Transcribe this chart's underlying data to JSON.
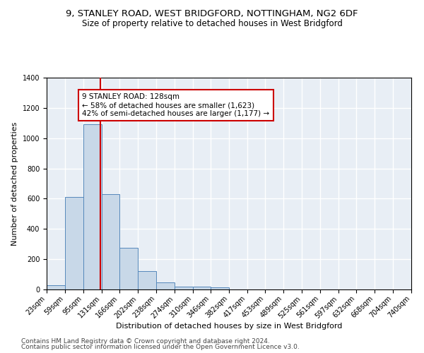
{
  "title1": "9, STANLEY ROAD, WEST BRIDGFORD, NOTTINGHAM, NG2 6DF",
  "title2": "Size of property relative to detached houses in West Bridgford",
  "xlabel": "Distribution of detached houses by size in West Bridgford",
  "ylabel": "Number of detached properties",
  "footnote1": "Contains HM Land Registry data © Crown copyright and database right 2024.",
  "footnote2": "Contains public sector information licensed under the Open Government Licence v3.0.",
  "bin_edges": [
    23,
    59,
    95,
    131,
    166,
    202,
    238,
    274,
    310,
    346,
    382,
    417,
    453,
    489,
    525,
    561,
    597,
    632,
    668,
    704,
    740
  ],
  "bin_heights": [
    30,
    610,
    1090,
    630,
    275,
    120,
    45,
    20,
    20,
    12,
    0,
    0,
    0,
    0,
    0,
    0,
    0,
    0,
    0,
    0
  ],
  "bar_color": "#c8d8e8",
  "bar_edge_color": "#5588bb",
  "vline_x": 128,
  "vline_color": "#cc0000",
  "annotation_text": "9 STANLEY ROAD: 128sqm\n← 58% of detached houses are smaller (1,623)\n42% of semi-detached houses are larger (1,177) →",
  "annotation_box_color": "white",
  "annotation_box_edge_color": "#cc0000",
  "ylim": [
    0,
    1400
  ],
  "yticks": [
    0,
    200,
    400,
    600,
    800,
    1000,
    1200,
    1400
  ],
  "background_color": "#e8eef5",
  "grid_color": "white",
  "title_fontsize": 9.5,
  "subtitle_fontsize": 8.5,
  "axis_label_fontsize": 8,
  "tick_fontsize": 7,
  "annotation_fontsize": 7.5,
  "footnote_fontsize": 6.5
}
